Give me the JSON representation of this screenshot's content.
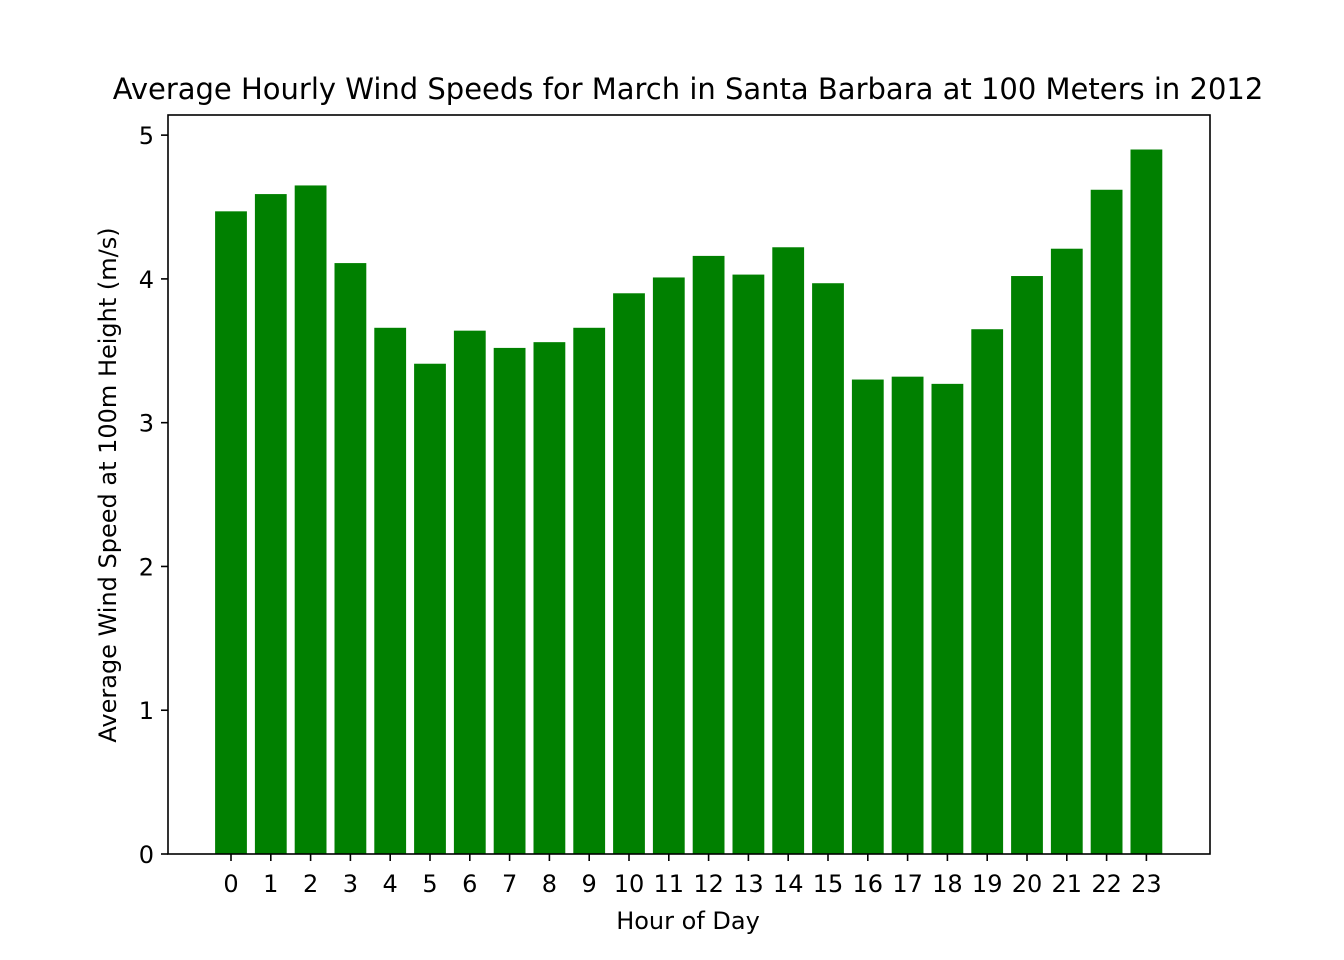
{
  "chart_data": {
    "type": "bar",
    "title": "Average Hourly Wind Speeds for March in Santa Barbara at 100 Meters in 2012",
    "xlabel": "Hour of Day",
    "ylabel": "Average Wind Speed at 100m Height (m/s)",
    "categories": [
      "0",
      "1",
      "2",
      "3",
      "4",
      "5",
      "6",
      "7",
      "8",
      "9",
      "10",
      "11",
      "12",
      "13",
      "14",
      "15",
      "16",
      "17",
      "18",
      "19",
      "20",
      "21",
      "22",
      "23"
    ],
    "values": [
      4.47,
      4.59,
      4.65,
      4.11,
      3.66,
      3.41,
      3.64,
      3.52,
      3.56,
      3.66,
      3.9,
      4.01,
      4.16,
      4.03,
      4.22,
      3.97,
      3.3,
      3.32,
      3.27,
      3.65,
      4.02,
      4.21,
      4.62,
      4.9
    ],
    "ylim": [
      0,
      5.14
    ],
    "yticks": [
      "0",
      "1",
      "2",
      "3",
      "4",
      "5"
    ],
    "bar_color": "#008000",
    "grid": false,
    "legend": "none"
  }
}
